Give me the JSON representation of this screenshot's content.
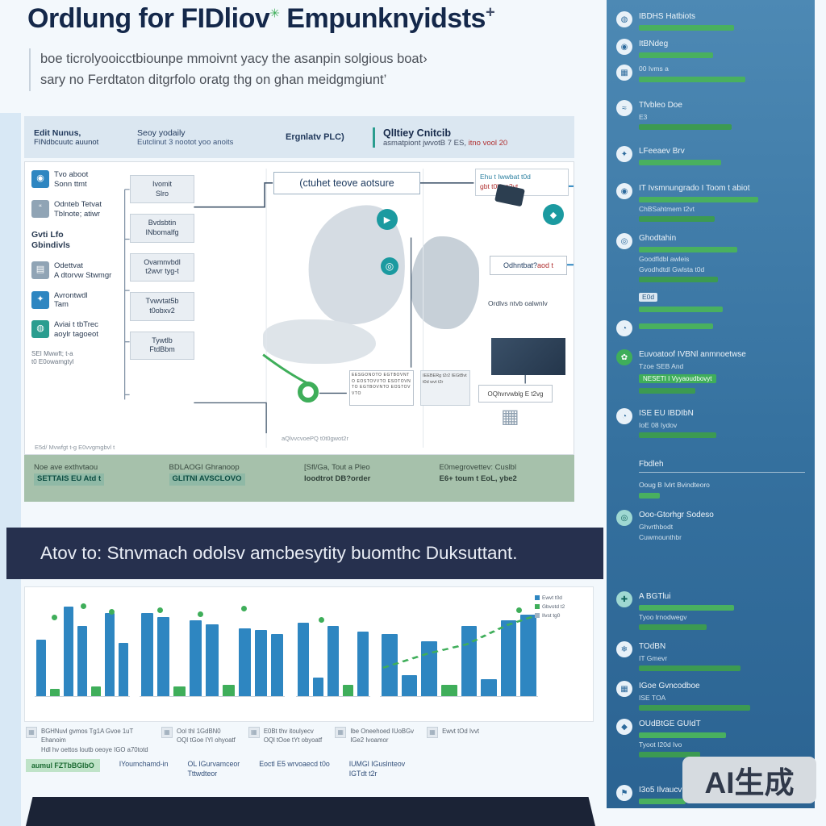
{
  "page": {
    "title_a": "Ordlung for FIDliov",
    "title_mark": "✳",
    "title_b": " Empunknyidsts",
    "title_plus": "+",
    "subtitle1": "boe ticrolyooicctbiounpe mmoivnt yacy the asanpin solgious boat›",
    "subtitle2": "sary no Ferdtaton ditgrfolo oratg thg on ghan meidgmgiunt’"
  },
  "header_bar": {
    "col1_line1": "Edit Nunus,",
    "col1_line2": "FINdbcuutc auunot",
    "col2_line1": "Seoy yodaily",
    "col2_line2": "Eutclinut 3 nootot yoo anoits",
    "col3": "Ergnlatv PLC)",
    "col4_title": "QlItiey Cnitcib",
    "col4_sub": "asmatpiont jwvotB 7 ES, ",
    "col4_sub_red": "itno vool 20"
  },
  "diagram": {
    "left_items": [
      {
        "icon": "person-icon",
        "glyph": "◉",
        "style": "blue",
        "text": "Tvo aboot\nSonn ttmt"
      },
      {
        "icon": "chat-icon",
        "glyph": "“",
        "style": "gray",
        "text": "Odnteb Tetvat\nTblnote; atiwr"
      },
      {
        "icon": "",
        "text": "Gvti Lfo\nGbindivls",
        "bold": true
      },
      {
        "icon": "document-icon",
        "glyph": "▤",
        "style": "gray",
        "text": "Odettvat\nA dtorvw Stwmgr"
      },
      {
        "icon": "hand-icon",
        "glyph": "✦",
        "style": "blue",
        "text": "Avrontwdl\nTam"
      },
      {
        "icon": "globe-icon",
        "glyph": "◍",
        "style": "teal",
        "text": "Aviai t tbTrec\naoylr tagoeot"
      },
      {
        "icon": "",
        "text": "SEI Mwwft; t-a\nt0 E0owamgtyl",
        "small": true
      }
    ],
    "col2_boxes": [
      "Ivomit\nSlro",
      "Bvdsbtin\nINbomalfg",
      "Ovamnvbdl\nt2wvr tyg-t",
      "Tvwvtat5b\nt0obxv2",
      "Tywtlb\nFtdBbm"
    ],
    "center_label": "(ctuhet teove aotsure",
    "topright_line1": "Ehu t Iwwbat t0d",
    "topright_line2": "gbt t0hr a2vt",
    "rbox_text": "Odhntbat? ",
    "rbox_red": "aod t",
    "rtext": "Ordlvs ntvb oalwnlv",
    "sbox": "OQhvrvwblg E t2vg",
    "dense1": "EESGONOTO EGTBOVNTO EOSTOVVTO ESOTOVNTO EGTBOVNTO EOSTOVVTO",
    "dense2": "IEEBERg t2r2 IEGtBvt t0d wvt t2r",
    "note_center": "aQlvvcvoePQ t0t0gwot2r",
    "note_left": "E5d/ Mvwfgt t-g E0vvgmgbvl t",
    "calc_glyph": "▦",
    "pin_glyph": "◎",
    "circ1_glyph": "▶",
    "circ2_glyph": "◆"
  },
  "green_band": {
    "cells": [
      {
        "l1": "Noe ave exthvtaou",
        "l2": "SETTAIS EU Atd t",
        "hl": true
      },
      {
        "l1": "BDLAOGI Ghranoop",
        "l2": "GLITNI AVSCLOVO",
        "hl": true
      },
      {
        "l1": "[Sfl/Ga, Tout a Pleo",
        "l2": "loodtrot DB?order",
        "hl": false
      },
      {
        "l1": "E0megrovettev: Cuslbl",
        "l2": "E6+ toum t EoL, ybe2",
        "hl": false
      }
    ]
  },
  "banner": {
    "text": "Atov to: Stnvmach odolsv amcbesytity buomthc Duksuttant."
  },
  "chart_data": {
    "type": "bar",
    "bar_color": "#2e86c1",
    "accent_color": "#3fae5a",
    "panels": [
      {
        "bars": [
          [
            60,
            "b"
          ],
          [
            8,
            "g"
          ],
          [
            95,
            "b"
          ],
          [
            74,
            "b"
          ],
          [
            10,
            "g"
          ],
          [
            88,
            "b"
          ],
          [
            56,
            "b"
          ]
        ],
        "dots": [
          [
            18,
            14
          ],
          [
            48,
            2
          ],
          [
            78,
            8
          ]
        ]
      },
      {
        "bars": [
          [
            88,
            "b"
          ],
          [
            84,
            "b"
          ],
          [
            10,
            "g"
          ],
          [
            80,
            "b"
          ],
          [
            76,
            "b"
          ],
          [
            12,
            "g"
          ],
          [
            72,
            "b"
          ],
          [
            70,
            "b"
          ],
          [
            66,
            "b"
          ]
        ],
        "dots": [
          [
            12,
            6
          ],
          [
            40,
            10
          ],
          [
            70,
            4
          ]
        ]
      },
      {
        "bars": [
          [
            78,
            "b"
          ],
          [
            20,
            "b"
          ],
          [
            74,
            "b"
          ],
          [
            12,
            "g"
          ],
          [
            68,
            "b"
          ]
        ],
        "dots": [
          [
            30,
            16
          ]
        ]
      },
      {
        "bars": [
          [
            66,
            "b"
          ],
          [
            22,
            "b"
          ],
          [
            58,
            "b"
          ],
          [
            12,
            "g"
          ],
          [
            74,
            "b"
          ],
          [
            18,
            "b"
          ],
          [
            80,
            "b"
          ],
          [
            86,
            "b"
          ]
        ],
        "dots": [
          [
            86,
            6
          ]
        ],
        "trend": true
      }
    ],
    "legend": [
      {
        "c": "#2e86c1",
        "t": "Ewvt t0d"
      },
      {
        "c": "#3fae5a",
        "t": "Gbvotd t2"
      },
      {
        "c": "#9fb3c4",
        "t": "Ilvst tg0"
      }
    ]
  },
  "footnotes": [
    {
      "l1": "BGHNuvl gvmos Tg1A Gvoe 1uT Ehanoim",
      "l2": "Hdl hv oettos loutb oeoye IGO a70totd"
    },
    {
      "l1": "Ool thl 1GdBN0",
      "l2": "OQI tGoe IYI ohyoatf"
    },
    {
      "l1": "E0Bt thv itoulyecv",
      "l2": "OQl tOoe tYt obyoatf"
    },
    {
      "l1": "Ibe Oneehoed IUoBGv",
      "l2": "IGe2 Ivoamor"
    },
    {
      "l1": "Ewvt tOd Ivvt",
      "l2": ""
    }
  ],
  "minirow": [
    {
      "t": "aumul FZTbBGIbO",
      "hl": true
    },
    {
      "t": "IYoumchamd-in",
      "hl": false
    },
    {
      "t": "OL IGurvamceor\nTttwdteor",
      "hl": false
    },
    {
      "t": "Eoctl E5 wrvoaecd t0o",
      "hl": false
    },
    {
      "t": "IUMGl IGuslnteov\nIGTdt t2r",
      "hl": false
    }
  ],
  "sidebar": {
    "items": [
      {
        "mt": 0,
        "icon": "globe-icon",
        "glyph": "◍",
        "title": "IBDHS Hatbiots",
        "bars": [
          118
        ]
      },
      {
        "mt": 10,
        "icon": "circle-icon",
        "glyph": "◉",
        "title": "ItBNdeg",
        "bars": [
          92
        ]
      },
      {
        "mt": 8,
        "icon": "grid-icon",
        "glyph": "▦",
        "title": "00 Ivms a",
        "small": true,
        "bars": [
          132
        ]
      },
      {
        "mt": 22,
        "icon": "wave-icon",
        "glyph": "≈",
        "title": "Tfvbleo Doe",
        "subs": [
          "E3"
        ],
        "bars2": [
          115
        ]
      },
      {
        "mt": 20,
        "icon": "star-icon",
        "glyph": "✦",
        "title": "LFeeaev Brv",
        "bars": [
          102
        ]
      },
      {
        "mt": 22,
        "icon": "person-icon",
        "glyph": "◉",
        "title": "IT Ivsmnungrado I Toom t abiot",
        "bars": [
          148
        ],
        "subs": [
          "ChBSahtmem t2vt"
        ],
        "bars2": [
          94
        ]
      },
      {
        "mt": 14,
        "icon": "rings-icon",
        "glyph": "◎",
        "title": "Ghodtahin",
        "bars": [
          122
        ],
        "subs": [
          "Goodfldbl awleis",
          "Gvodhdtdl Gwlsta t0d"
        ],
        "bars2": [
          98
        ]
      },
      {
        "mt": 8,
        "icon": "",
        "title": "E0d",
        "badge": true,
        "bars": [
          104
        ]
      },
      {
        "mt": 10,
        "icon": "person-icon",
        "glyph": "◔",
        "title": "",
        "bars": [
          92
        ]
      },
      {
        "mt": 16,
        "icon": "leaf-icon",
        "glyph": "✿",
        "style": "green",
        "title": "Euvoatoof IVBNl anmnoetwse",
        "subs": [
          "Tzoe SEB And"
        ],
        "pill": "NESETI I Vyyaoudbovyt",
        "bars2": [
          70
        ]
      },
      {
        "mt": 18,
        "icon": "clock-icon",
        "glyph": "◔",
        "title": "ISE EU IBDIbN",
        "subs": [
          "IoE 08 Iydov"
        ],
        "bars2": [
          96
        ]
      },
      {
        "mt": 26,
        "icon": "",
        "title": "Fbdleh",
        "rule": true
      },
      {
        "mt": 10,
        "icon": "",
        "title": "Ooug B Ivlrt Bvindteoro",
        "small": true,
        "bars": [
          26
        ]
      },
      {
        "mt": 14,
        "icon": "target-icon",
        "glyph": "◎",
        "style": "teal",
        "title": "Ooo-Gtorhgr Sodeso",
        "subs": [
          "Ghvrthbodt",
          "Cuwmounthbr"
        ]
      },
      {
        "mt": 62,
        "icon": "plus-icon",
        "glyph": "✚",
        "style": "teal",
        "title": "A BGTlui",
        "bars": [
          118
        ],
        "subs": [
          "Tyoo lrnodwegv"
        ],
        "bars2": [
          84
        ]
      },
      {
        "mt": 14,
        "icon": "snowflake-icon",
        "glyph": "❄",
        "title": "TOdBN",
        "subs": [
          "IT Gmevr"
        ],
        "bars2": [
          126
        ]
      },
      {
        "mt": 12,
        "icon": "box-icon",
        "glyph": "▦",
        "title": "IGoe Gvncodboe",
        "subs": [
          "ISE TOA"
        ],
        "bars2": [
          138
        ]
      },
      {
        "mt": 10,
        "icon": "gem-icon",
        "glyph": "◆",
        "title": "OUdBtGE GUIdT",
        "subs": [
          "Tyoot I20d Ivo"
        ],
        "bars": [
          108
        ],
        "bars2": [
          76
        ]
      },
      {
        "mt": 34,
        "icon": "flag-icon",
        "glyph": "⚑",
        "title": "I3o5 Ilvaucv",
        "bars": [
          58
        ]
      }
    ]
  },
  "watermark": "AI生成"
}
